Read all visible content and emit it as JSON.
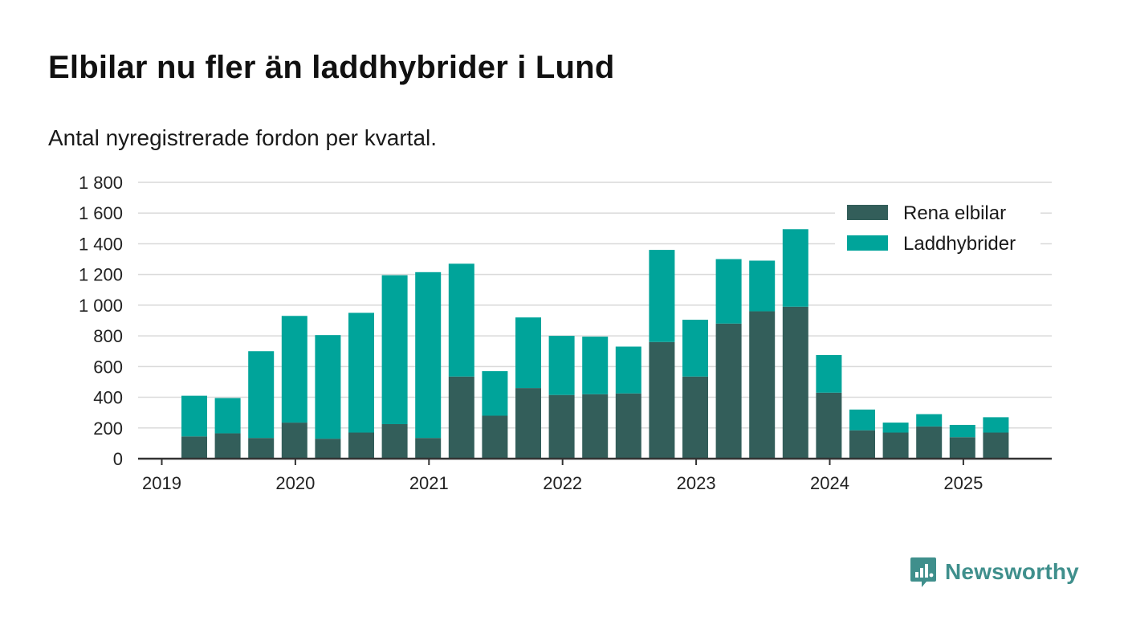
{
  "header": {
    "title": "Elbilar nu fler än laddhybrider i Lund",
    "subtitle": "Antal nyregistrerade fordon per kvartal."
  },
  "brand": {
    "name": "Newsworthy",
    "color": "#3f8f8c",
    "icon": "newsworthy-logo-icon"
  },
  "colors": {
    "electric": "#335e5a",
    "hybrid": "#00a49a",
    "grid": "#d9d9d9",
    "axis": "#333333"
  },
  "chart_data": {
    "type": "bar",
    "stacked": true,
    "categories": [
      "2019 Q2",
      "2019 Q3",
      "2019 Q4",
      "2020 Q1",
      "2020 Q2",
      "2020 Q3",
      "2020 Q4",
      "2021 Q1",
      "2021 Q2",
      "2021 Q3",
      "2021 Q4",
      "2022 Q1",
      "2022 Q2",
      "2022 Q3",
      "2022 Q4",
      "2023 Q1",
      "2023 Q2",
      "2023 Q3",
      "2023 Q4",
      "2024 Q1",
      "2024 Q2",
      "2024 Q3",
      "2024 Q4",
      "2025 Q1",
      "2025 Q2"
    ],
    "series": [
      {
        "name": "Rena elbilar",
        "color": "#335e5a",
        "values": [
          145,
          165,
          135,
          235,
          130,
          170,
          225,
          135,
          535,
          280,
          460,
          415,
          420,
          425,
          760,
          535,
          880,
          960,
          990,
          430,
          185,
          170,
          210,
          140,
          170
        ]
      },
      {
        "name": "Laddhybrider",
        "color": "#00a49a",
        "values": [
          265,
          230,
          565,
          695,
          675,
          780,
          970,
          1080,
          735,
          290,
          460,
          385,
          375,
          305,
          600,
          370,
          420,
          330,
          505,
          245,
          135,
          65,
          80,
          80,
          100
        ]
      }
    ],
    "x_ticks": [
      "2019",
      "2020",
      "2021",
      "2022",
      "2023",
      "2024",
      "2025"
    ],
    "y_ticks": [
      "0",
      "200",
      "400",
      "600",
      "800",
      "1 000",
      "1 200",
      "1 400",
      "1 600",
      "1 800"
    ],
    "ylim": [
      0,
      1800
    ],
    "grid": true,
    "legend_position": "top-right"
  }
}
